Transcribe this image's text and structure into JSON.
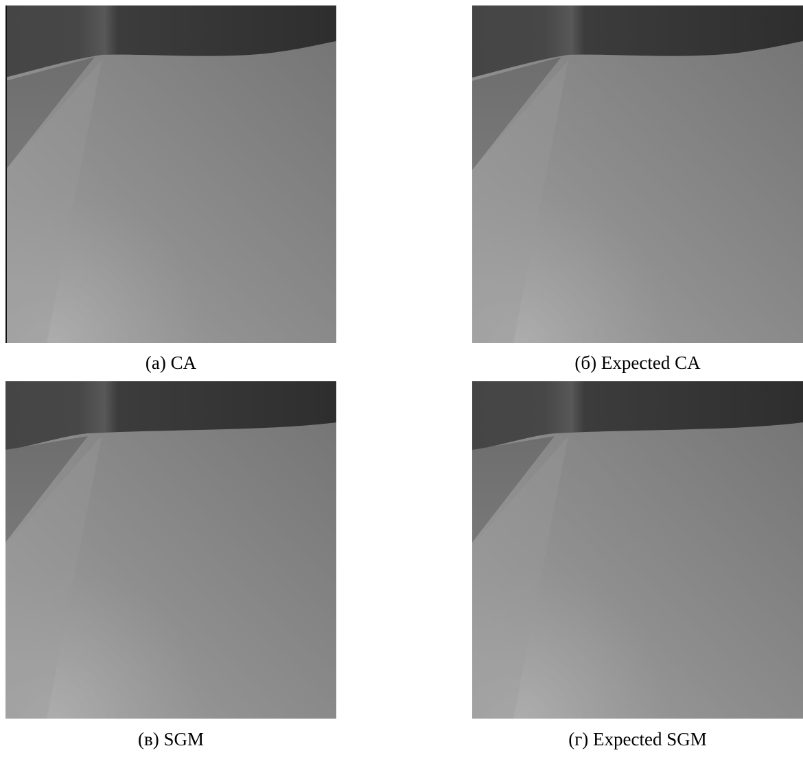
{
  "figures": [
    {
      "caption": "(а) CA"
    },
    {
      "caption": "(б) Expected CA"
    },
    {
      "caption": "(в) SGM"
    },
    {
      "caption": "(г) Expected SGM"
    }
  ]
}
